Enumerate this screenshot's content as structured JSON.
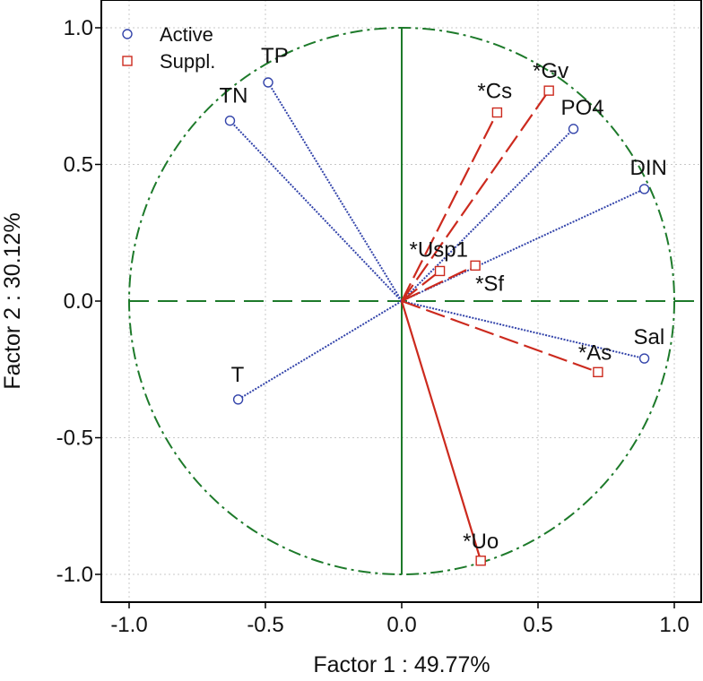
{
  "chart_data": {
    "type": "scatter",
    "subtype": "pca-correlation-circle",
    "xlabel": "Factor 1 : 49.77%",
    "ylabel": "Factor 2 : 30.12%",
    "xlim": [
      -1.1,
      1.1
    ],
    "ylim": [
      -1.1,
      1.1
    ],
    "x_ticks": [
      -1.0,
      -0.5,
      0.0,
      0.5,
      1.0
    ],
    "x_tick_labels": [
      "-1.0",
      "-0.5",
      "0.0",
      "0.5",
      "1.0"
    ],
    "y_ticks": [
      -1.0,
      -0.5,
      0.0,
      0.5,
      1.0
    ],
    "y_tick_labels": [
      "-1.0",
      "-0.5",
      "0.0",
      "0.5",
      "1.0"
    ],
    "grid": true,
    "unit_circle": true,
    "legend_position": "top-left",
    "colors": {
      "active": "#3344aa",
      "supplementary": "#cc2a1e",
      "circle": "#1d7a2a",
      "grid": "#c8c8c8"
    },
    "series": [
      {
        "name": "Active",
        "marker": "circle",
        "points": [
          {
            "label": "TP",
            "x": -0.49,
            "y": 0.8
          },
          {
            "label": "TN",
            "x": -0.63,
            "y": 0.66
          },
          {
            "label": "T",
            "x": -0.6,
            "y": -0.36
          },
          {
            "label": "PO4",
            "x": 0.63,
            "y": 0.63
          },
          {
            "label": "DIN",
            "x": 0.89,
            "y": 0.41
          },
          {
            "label": "Sal",
            "x": 0.89,
            "y": -0.21
          }
        ]
      },
      {
        "name": "Suppl.",
        "marker": "square",
        "points": [
          {
            "label": "*Gv",
            "x": 0.54,
            "y": 0.77
          },
          {
            "label": "*Cs",
            "x": 0.35,
            "y": 0.69
          },
          {
            "label": "*Usp1",
            "x": 0.14,
            "y": 0.11
          },
          {
            "label": "*Sf",
            "x": 0.27,
            "y": 0.13
          },
          {
            "label": "*As",
            "x": 0.72,
            "y": -0.26
          },
          {
            "label": "*Uo",
            "x": 0.29,
            "y": -0.95
          }
        ]
      }
    ]
  }
}
